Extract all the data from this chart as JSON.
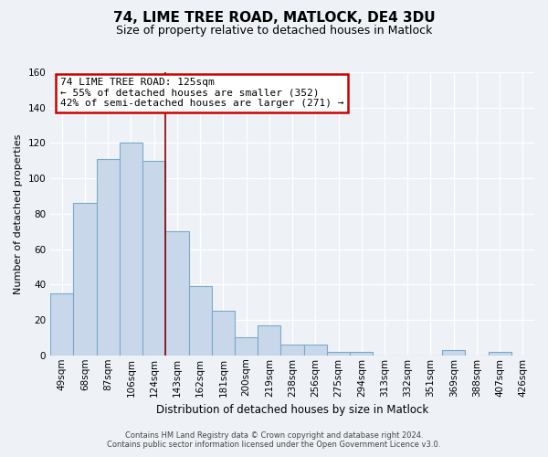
{
  "title": "74, LIME TREE ROAD, MATLOCK, DE4 3DU",
  "subtitle": "Size of property relative to detached houses in Matlock",
  "xlabel": "Distribution of detached houses by size in Matlock",
  "ylabel": "Number of detached properties",
  "bar_labels": [
    "49sqm",
    "68sqm",
    "87sqm",
    "106sqm",
    "124sqm",
    "143sqm",
    "162sqm",
    "181sqm",
    "200sqm",
    "219sqm",
    "238sqm",
    "256sqm",
    "275sqm",
    "294sqm",
    "313sqm",
    "332sqm",
    "351sqm",
    "369sqm",
    "388sqm",
    "407sqm",
    "426sqm"
  ],
  "bar_values": [
    35,
    86,
    111,
    120,
    110,
    70,
    39,
    25,
    10,
    17,
    6,
    6,
    2,
    2,
    0,
    0,
    0,
    3,
    0,
    2,
    0
  ],
  "bar_color": "#c8d8ea",
  "bar_edge_color": "#7aaac8",
  "property_line_x": 4,
  "property_label": "74 LIME TREE ROAD: 125sqm",
  "annotation_line1": "← 55% of detached houses are smaller (352)",
  "annotation_line2": "42% of semi-detached houses are larger (271) →",
  "ylim": [
    0,
    160
  ],
  "yticks": [
    0,
    20,
    40,
    60,
    80,
    100,
    120,
    140,
    160
  ],
  "annotation_box_color": "#ffffff",
  "annotation_box_edge": "#cc0000",
  "vline_color": "#8b0000",
  "footer_line1": "Contains HM Land Registry data © Crown copyright and database right 2024.",
  "footer_line2": "Contains public sector information licensed under the Open Government Licence v3.0.",
  "background_color": "#eef2f7",
  "grid_color": "#ffffff",
  "title_fontsize": 11,
  "subtitle_fontsize": 9,
  "ylabel_fontsize": 8,
  "xlabel_fontsize": 8.5,
  "tick_fontsize": 7.5,
  "annotation_fontsize": 8
}
